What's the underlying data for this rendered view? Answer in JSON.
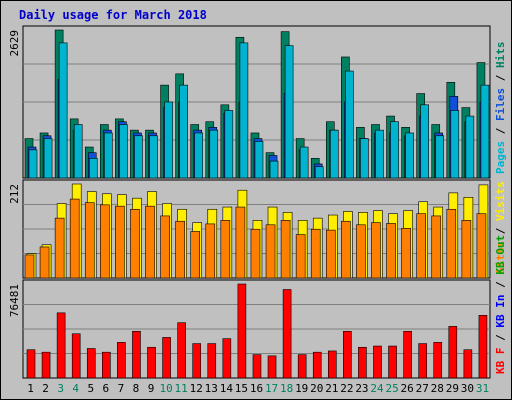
{
  "chart_data": [
    {
      "type": "bar",
      "title": "Daily usage for March 2018",
      "max_label": "2629",
      "legend": [
        "Pages",
        "Files",
        "Hits"
      ],
      "legend_colors": {
        "Pages": "#00b4d0",
        "Files": "#1050d8",
        "Hits": "#008060"
      },
      "categories": [
        "1",
        "2",
        "3",
        "4",
        "5",
        "6",
        "7",
        "8",
        "9",
        "10",
        "11",
        "12",
        "13",
        "14",
        "15",
        "16",
        "17",
        "18",
        "19",
        "20",
        "21",
        "22",
        "23",
        "24",
        "25",
        "26",
        "27",
        "28",
        "29",
        "30",
        "31"
      ],
      "series": [
        {
          "name": "Hits",
          "values": [
            700,
            800,
            2629,
            1050,
            550,
            950,
            1050,
            850,
            850,
            1650,
            1850,
            950,
            1000,
            1300,
            2500,
            800,
            450,
            2600,
            700,
            350,
            1000,
            2150,
            900,
            950,
            1100,
            900,
            1500,
            950,
            1700,
            1250,
            2050
          ]
        },
        {
          "name": "Files",
          "values": [
            550,
            750,
            1750,
            850,
            450,
            850,
            1000,
            800,
            800,
            1250,
            1350,
            850,
            900,
            1150,
            1350,
            700,
            400,
            1500,
            500,
            250,
            850,
            1350,
            700,
            800,
            800,
            750,
            1100,
            800,
            1450,
            1000,
            1350
          ]
        },
        {
          "name": "Pages",
          "values": [
            500,
            700,
            2400,
            950,
            350,
            800,
            950,
            750,
            750,
            1350,
            1650,
            800,
            850,
            1200,
            2400,
            650,
            300,
            2350,
            550,
            200,
            850,
            1900,
            700,
            850,
            1000,
            800,
            1300,
            750,
            1200,
            1100,
            1650
          ]
        }
      ]
    },
    {
      "type": "bar",
      "max_label": "212",
      "legend": [
        "Sites",
        "Visits"
      ],
      "legend_colors": {
        "Sites": "#ff8000",
        "Visits": "#ffee00"
      },
      "categories": [
        "1",
        "2",
        "3",
        "4",
        "5",
        "6",
        "7",
        "8",
        "9",
        "10",
        "11",
        "12",
        "13",
        "14",
        "15",
        "16",
        "17",
        "18",
        "19",
        "20",
        "21",
        "22",
        "23",
        "24",
        "25",
        "26",
        "27",
        "28",
        "29",
        "30",
        "31"
      ],
      "series": [
        {
          "name": "Visits",
          "values": [
            55,
            75,
            168,
            212,
            195,
            190,
            188,
            180,
            195,
            168,
            155,
            125,
            155,
            160,
            198,
            130,
            160,
            148,
            130,
            135,
            142,
            150,
            148,
            152,
            145,
            152,
            172,
            160,
            192,
            182,
            210
          ]
        },
        {
          "name": "Sites",
          "values": [
            52,
            70,
            135,
            178,
            170,
            165,
            162,
            155,
            162,
            140,
            128,
            105,
            122,
            130,
            160,
            110,
            120,
            130,
            98,
            110,
            108,
            128,
            120,
            125,
            123,
            112,
            145,
            140,
            155,
            130,
            145
          ]
        }
      ]
    },
    {
      "type": "bar",
      "max_label": "76481",
      "legend": [
        "KB F",
        "KB In",
        "KB Out"
      ],
      "legend_colors": {
        "KB F": "#ff0000",
        "KB In": "#0000ff",
        "KB Out": "#00a000"
      },
      "categories": [
        "1",
        "2",
        "3",
        "4",
        "5",
        "6",
        "7",
        "8",
        "9",
        "10",
        "11",
        "12",
        "13",
        "14",
        "15",
        "16",
        "17",
        "18",
        "19",
        "20",
        "21",
        "22",
        "23",
        "24",
        "25",
        "26",
        "27",
        "28",
        "29",
        "30",
        "31"
      ],
      "series": [
        {
          "name": "KB F",
          "values": [
            23000,
            21000,
            53000,
            36000,
            24000,
            21000,
            29000,
            38000,
            25000,
            33000,
            45000,
            28000,
            28000,
            32000,
            76481,
            19000,
            18000,
            72000,
            19000,
            21000,
            22000,
            38000,
            25000,
            26000,
            26000,
            38000,
            28000,
            29000,
            42000,
            23000,
            51000
          ]
        }
      ]
    }
  ]
}
